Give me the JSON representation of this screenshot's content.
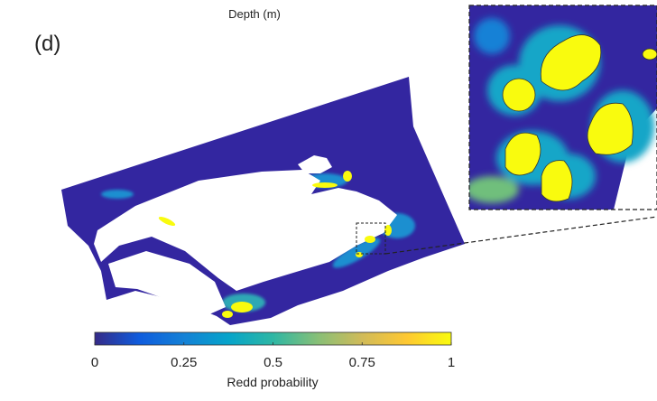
{
  "title": "Depth (m)",
  "panel_label": "(d)",
  "colorbar": {
    "label": "Redd probability",
    "lim": [
      0,
      1
    ],
    "ticks": [
      0,
      0.25,
      0.5,
      0.75,
      1
    ],
    "colormap": [
      "#352a87",
      "#0f5cdd",
      "#1481d6",
      "#06a4ca",
      "#2eb7a4",
      "#87bf77",
      "#d1bb59",
      "#fec832",
      "#f9fb0e"
    ]
  }
}
